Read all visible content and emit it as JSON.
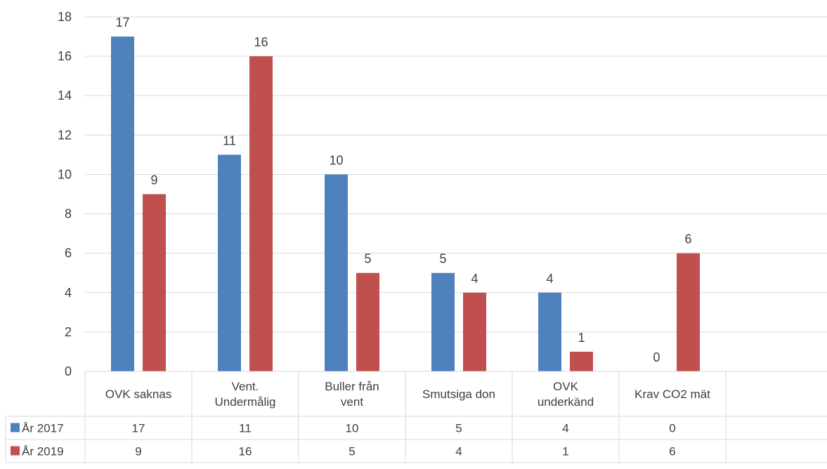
{
  "chart_data": {
    "type": "bar",
    "categories": [
      [
        "OVK saknas"
      ],
      [
        "Vent.",
        "Undermålig"
      ],
      [
        "Buller från",
        "vent"
      ],
      [
        "Smutsiga don"
      ],
      [
        "OVK",
        "underkänd"
      ],
      [
        "Krav CO2 mät"
      ]
    ],
    "series": [
      {
        "name": "År 2017",
        "color": "#4f81bd",
        "values": [
          17,
          11,
          10,
          5,
          4,
          0
        ]
      },
      {
        "name": "År 2019",
        "color": "#c0504d",
        "values": [
          9,
          16,
          5,
          4,
          1,
          6
        ]
      }
    ],
    "ylim": [
      0,
      18
    ],
    "yticks": [
      0,
      2,
      4,
      6,
      8,
      10,
      12,
      14,
      16,
      18
    ],
    "grid": true,
    "data_table": true,
    "legend": "data-table-rows"
  }
}
